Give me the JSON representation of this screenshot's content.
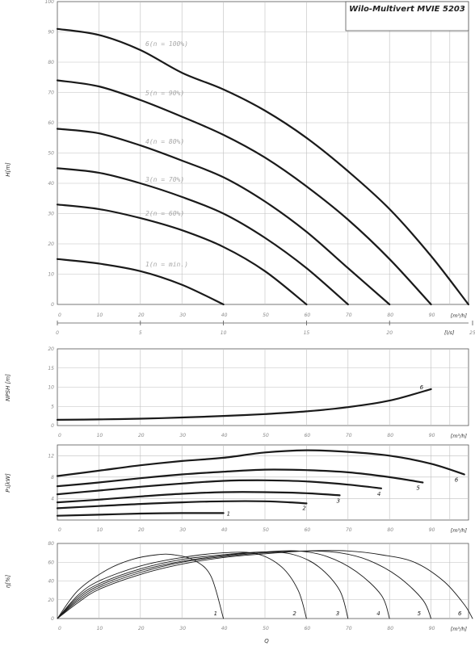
{
  "title": "Wilo-Multivert MVIE 5203",
  "colors": {
    "curve": "#1a1a1a",
    "grid": "#bfbfbf",
    "tick": "#8a8a8a"
  },
  "chart_data": [
    {
      "id": "head",
      "type": "line",
      "ylabel": "H[m]",
      "xunit": "[m³/h]",
      "x_ticks": [
        "0",
        "10",
        "20",
        "30",
        "40",
        "50",
        "60",
        "70",
        "80",
        "90"
      ],
      "y_ticks": [
        "0",
        "10",
        "20",
        "30",
        "40",
        "50",
        "60",
        "70",
        "80",
        "90",
        "100"
      ],
      "xlim": [
        0,
        100
      ],
      "ylim": [
        0,
        100
      ],
      "secondary_axis": {
        "unit": "[l/s]",
        "ticks": [
          "0",
          "5",
          "10",
          "15",
          "20",
          "25"
        ],
        "values": [
          0,
          5,
          10,
          15,
          20,
          25
        ]
      },
      "series": [
        {
          "name": "1(n = min.)",
          "points": [
            [
              0,
              15
            ],
            [
              10,
              13.5
            ],
            [
              20,
              11
            ],
            [
              30,
              6.5
            ],
            [
              40,
              0
            ]
          ]
        },
        {
          "name": "2(n = 60%)",
          "points": [
            [
              0,
              33
            ],
            [
              10,
              31.5
            ],
            [
              20,
              28.5
            ],
            [
              30,
              24.5
            ],
            [
              40,
              19
            ],
            [
              50,
              11
            ],
            [
              60,
              0
            ]
          ]
        },
        {
          "name": "3(n = 70%)",
          "points": [
            [
              0,
              45
            ],
            [
              10,
              43.5
            ],
            [
              20,
              40
            ],
            [
              30,
              35.5
            ],
            [
              40,
              30
            ],
            [
              50,
              22
            ],
            [
              60,
              12
            ],
            [
              70,
              0
            ]
          ]
        },
        {
          "name": "4(n = 80%)",
          "points": [
            [
              0,
              58
            ],
            [
              10,
              56.5
            ],
            [
              20,
              52.5
            ],
            [
              30,
              47.5
            ],
            [
              40,
              42
            ],
            [
              50,
              34
            ],
            [
              60,
              24
            ],
            [
              70,
              12
            ],
            [
              80,
              0
            ]
          ]
        },
        {
          "name": "5(n = 90%)",
          "points": [
            [
              0,
              74
            ],
            [
              10,
              72
            ],
            [
              20,
              67.5
            ],
            [
              30,
              62
            ],
            [
              40,
              56
            ],
            [
              50,
              48.5
            ],
            [
              60,
              39
            ],
            [
              70,
              28
            ],
            [
              80,
              15
            ],
            [
              90,
              0
            ]
          ]
        },
        {
          "name": "6(n = 100%)",
          "points": [
            [
              0,
              91
            ],
            [
              10,
              89
            ],
            [
              20,
              84
            ],
            [
              30,
              76.5
            ],
            [
              40,
              71
            ],
            [
              50,
              64
            ],
            [
              60,
              55
            ],
            [
              70,
              44
            ],
            [
              80,
              31.5
            ],
            [
              90,
              16
            ],
            [
              99,
              0
            ]
          ]
        }
      ]
    },
    {
      "id": "npsh",
      "type": "line",
      "ylabel": "NPSH [m]",
      "xunit": "[m³/h]",
      "x_ticks": [
        "0",
        "10",
        "20",
        "30",
        "40",
        "50",
        "60",
        "70",
        "80",
        "90"
      ],
      "y_ticks": [
        "0",
        "5",
        "10",
        "15",
        "20"
      ],
      "xlim": [
        0,
        100
      ],
      "ylim": [
        0,
        20
      ],
      "series": [
        {
          "name": "6",
          "points": [
            [
              0,
              1.5
            ],
            [
              10,
              1.6
            ],
            [
              20,
              1.8
            ],
            [
              30,
              2.1
            ],
            [
              40,
              2.5
            ],
            [
              50,
              3
            ],
            [
              60,
              3.7
            ],
            [
              70,
              4.8
            ],
            [
              80,
              6.5
            ],
            [
              90,
              9.5
            ]
          ]
        }
      ]
    },
    {
      "id": "power",
      "type": "line",
      "ylabel": "P₁[kW]",
      "xunit": "[m³/h]",
      "x_ticks": [
        "0",
        "10",
        "20",
        "30",
        "40",
        "50",
        "60",
        "70",
        "80",
        "90"
      ],
      "y_ticks": [
        "4",
        "8",
        "12"
      ],
      "ylim": [
        0,
        14
      ],
      "xlim": [
        0,
        100
      ],
      "series": [
        {
          "name": "1",
          "points": [
            [
              0,
              0.8
            ],
            [
              10,
              1
            ],
            [
              20,
              1.2
            ],
            [
              30,
              1.3
            ],
            [
              40,
              1.3
            ]
          ]
        },
        {
          "name": "2",
          "points": [
            [
              0,
              2.2
            ],
            [
              10,
              2.6
            ],
            [
              20,
              3
            ],
            [
              30,
              3.3
            ],
            [
              40,
              3.5
            ],
            [
              50,
              3.5
            ],
            [
              56,
              3.3
            ],
            [
              60,
              3.1
            ]
          ]
        },
        {
          "name": "3",
          "points": [
            [
              0,
              3.3
            ],
            [
              10,
              3.8
            ],
            [
              20,
              4.4
            ],
            [
              30,
              4.9
            ],
            [
              40,
              5.2
            ],
            [
              50,
              5.2
            ],
            [
              60,
              5
            ],
            [
              68,
              4.6
            ]
          ]
        },
        {
          "name": "4",
          "points": [
            [
              0,
              4.8
            ],
            [
              10,
              5.5
            ],
            [
              20,
              6.2
            ],
            [
              30,
              6.8
            ],
            [
              40,
              7.3
            ],
            [
              50,
              7.4
            ],
            [
              60,
              7.2
            ],
            [
              70,
              6.6
            ],
            [
              78,
              5.9
            ]
          ]
        },
        {
          "name": "5",
          "points": [
            [
              0,
              6.3
            ],
            [
              10,
              7
            ],
            [
              20,
              7.8
            ],
            [
              30,
              8.5
            ],
            [
              40,
              9
            ],
            [
              50,
              9.4
            ],
            [
              60,
              9.3
            ],
            [
              70,
              8.9
            ],
            [
              80,
              8
            ],
            [
              88,
              7
            ]
          ]
        },
        {
          "name": "6",
          "points": [
            [
              0,
              8.2
            ],
            [
              10,
              9.2
            ],
            [
              20,
              10.2
            ],
            [
              30,
              11
            ],
            [
              40,
              11.6
            ],
            [
              50,
              12.6
            ],
            [
              60,
              13
            ],
            [
              70,
              12.7
            ],
            [
              80,
              12
            ],
            [
              90,
              10.5
            ],
            [
              98,
              8.5
            ]
          ]
        }
      ]
    },
    {
      "id": "efficiency",
      "type": "line",
      "ylabel": "η[%]",
      "xlabel": "Q",
      "xunit": "[m³/h]",
      "x_ticks": [
        "0",
        "10",
        "20",
        "30",
        "40",
        "50",
        "60",
        "70",
        "80",
        "90"
      ],
      "y_ticks": [
        "0",
        "20",
        "40",
        "60",
        "80"
      ],
      "xlim": [
        0,
        100
      ],
      "ylim": [
        0,
        80
      ],
      "series": [
        {
          "name": "1",
          "points": [
            [
              0,
              0
            ],
            [
              5,
              30
            ],
            [
              12,
              52
            ],
            [
              18,
              63
            ],
            [
              24,
              68
            ],
            [
              28,
              68
            ],
            [
              33,
              62
            ],
            [
              37,
              45
            ],
            [
              40,
              0
            ]
          ]
        },
        {
          "name": "2",
          "points": [
            [
              0,
              0
            ],
            [
              5,
              25
            ],
            [
              10,
              40
            ],
            [
              20,
              56
            ],
            [
              30,
              65
            ],
            [
              40,
              70
            ],
            [
              48,
              69
            ],
            [
              54,
              55
            ],
            [
              58,
              30
            ],
            [
              60,
              0
            ]
          ]
        },
        {
          "name": "3",
          "points": [
            [
              0,
              0
            ],
            [
              5,
              23
            ],
            [
              10,
              37
            ],
            [
              20,
              53
            ],
            [
              30,
              63
            ],
            [
              40,
              68
            ],
            [
              50,
              71
            ],
            [
              57,
              68
            ],
            [
              63,
              55
            ],
            [
              68,
              30
            ],
            [
              70,
              0
            ]
          ]
        },
        {
          "name": "4",
          "points": [
            [
              0,
              0
            ],
            [
              5,
              21
            ],
            [
              10,
              35
            ],
            [
              20,
              51
            ],
            [
              30,
              61
            ],
            [
              40,
              67
            ],
            [
              50,
              71
            ],
            [
              58,
              72
            ],
            [
              65,
              66
            ],
            [
              72,
              50
            ],
            [
              78,
              25
            ],
            [
              80,
              0
            ]
          ]
        },
        {
          "name": "5",
          "points": [
            [
              0,
              0
            ],
            [
              5,
              19
            ],
            [
              10,
              33
            ],
            [
              20,
              49
            ],
            [
              30,
              60
            ],
            [
              40,
              66
            ],
            [
              50,
              70
            ],
            [
              60,
              72
            ],
            [
              68,
              70
            ],
            [
              75,
              62
            ],
            [
              82,
              45
            ],
            [
              88,
              20
            ],
            [
              90,
              0
            ]
          ]
        },
        {
          "name": "6",
          "points": [
            [
              0,
              0
            ],
            [
              5,
              17
            ],
            [
              10,
              31
            ],
            [
              20,
              47
            ],
            [
              30,
              58
            ],
            [
              40,
              65
            ],
            [
              50,
              69
            ],
            [
              60,
              72
            ],
            [
              70,
              72
            ],
            [
              78,
              68
            ],
            [
              86,
              60
            ],
            [
              93,
              40
            ],
            [
              98,
              15
            ],
            [
              100,
              0
            ]
          ]
        }
      ]
    }
  ]
}
